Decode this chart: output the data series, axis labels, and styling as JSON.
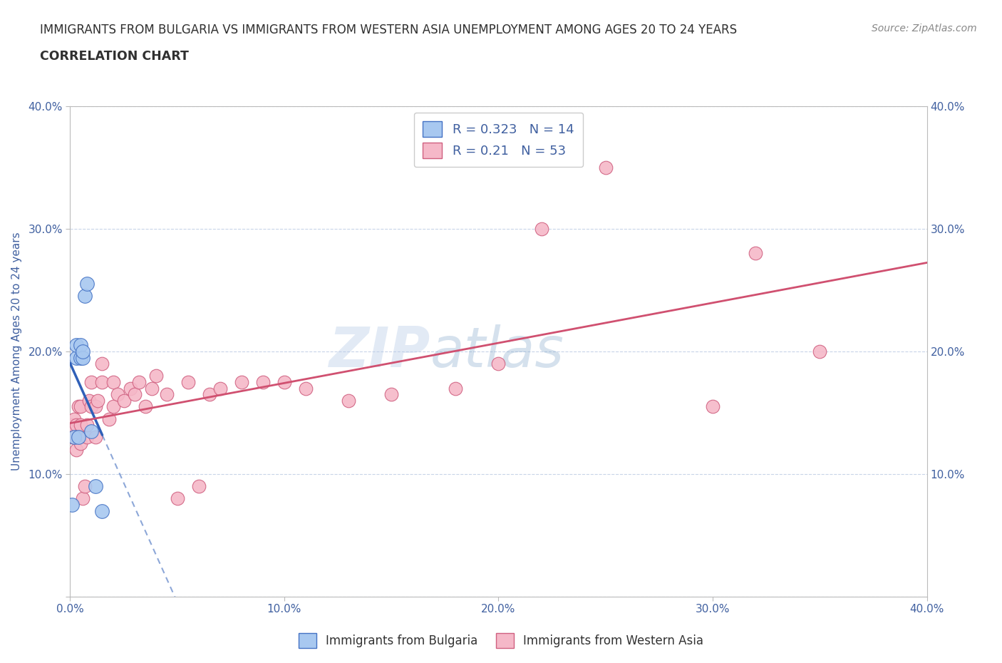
{
  "title_line1": "IMMIGRANTS FROM BULGARIA VS IMMIGRANTS FROM WESTERN ASIA UNEMPLOYMENT AMONG AGES 20 TO 24 YEARS",
  "title_line2": "CORRELATION CHART",
  "source_text": "Source: ZipAtlas.com",
  "ylabel": "Unemployment Among Ages 20 to 24 years",
  "xlim": [
    0.0,
    0.4
  ],
  "ylim": [
    0.0,
    0.4
  ],
  "xtick_vals": [
    0.0,
    0.1,
    0.2,
    0.3,
    0.4
  ],
  "ytick_vals": [
    0.0,
    0.1,
    0.2,
    0.3,
    0.4
  ],
  "watermark_zip": "ZIP",
  "watermark_atlas": "atlas",
  "bulgaria_fill": "#a8c8f0",
  "bulgaria_edge": "#4472c4",
  "western_asia_fill": "#f5b8c8",
  "western_asia_edge": "#d06080",
  "bulgaria_line_color": "#3060b8",
  "western_asia_line_color": "#d05070",
  "R_bulgaria": 0.323,
  "N_bulgaria": 14,
  "R_western_asia": 0.21,
  "N_western_asia": 53,
  "legend_label_bulgaria": "Immigrants from Bulgaria",
  "legend_label_western_asia": "Immigrants from Western Asia",
  "tick_color": "#4060a0",
  "grid_color": "#c8d4e8",
  "title_color": "#303030",
  "bg_color": "#ffffff",
  "bulgaria_x": [
    0.001,
    0.002,
    0.003,
    0.003,
    0.004,
    0.005,
    0.005,
    0.006,
    0.006,
    0.007,
    0.008,
    0.01,
    0.012,
    0.015
  ],
  "bulgaria_y": [
    0.075,
    0.13,
    0.195,
    0.205,
    0.13,
    0.195,
    0.205,
    0.195,
    0.2,
    0.245,
    0.255,
    0.135,
    0.09,
    0.07
  ],
  "western_asia_x": [
    0.001,
    0.001,
    0.002,
    0.002,
    0.003,
    0.003,
    0.004,
    0.004,
    0.005,
    0.005,
    0.005,
    0.006,
    0.007,
    0.008,
    0.008,
    0.009,
    0.01,
    0.01,
    0.012,
    0.012,
    0.013,
    0.015,
    0.015,
    0.018,
    0.02,
    0.02,
    0.022,
    0.025,
    0.028,
    0.03,
    0.032,
    0.035,
    0.038,
    0.04,
    0.045,
    0.05,
    0.055,
    0.06,
    0.065,
    0.07,
    0.08,
    0.09,
    0.1,
    0.11,
    0.13,
    0.15,
    0.18,
    0.2,
    0.22,
    0.25,
    0.3,
    0.32,
    0.35
  ],
  "western_asia_y": [
    0.13,
    0.14,
    0.13,
    0.145,
    0.12,
    0.14,
    0.13,
    0.155,
    0.125,
    0.14,
    0.155,
    0.08,
    0.09,
    0.13,
    0.14,
    0.16,
    0.155,
    0.175,
    0.13,
    0.155,
    0.16,
    0.175,
    0.19,
    0.145,
    0.155,
    0.175,
    0.165,
    0.16,
    0.17,
    0.165,
    0.175,
    0.155,
    0.17,
    0.18,
    0.165,
    0.08,
    0.175,
    0.09,
    0.165,
    0.17,
    0.175,
    0.175,
    0.175,
    0.17,
    0.16,
    0.165,
    0.17,
    0.19,
    0.3,
    0.35,
    0.155,
    0.28,
    0.2
  ]
}
